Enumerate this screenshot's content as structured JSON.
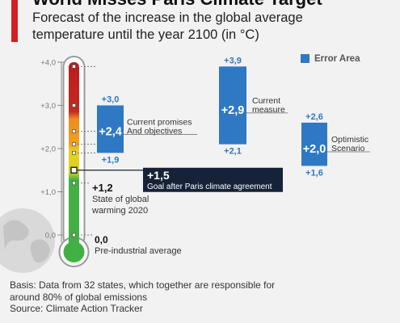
{
  "title": "World Misses Paris Climate Target",
  "subtitle_line1": "Forecast of the increase in the global average",
  "subtitle_line2": "temperature until the year 2100 (in °C)",
  "legend_label": "Error Area",
  "footer": {
    "line1": "Basis: Data from 32 states, which together are responsible for",
    "line2": "around 80% of global emissions",
    "line3": "Source: Climate Action Tracker"
  },
  "colors": {
    "accent": "#d42020",
    "bar": "#2f78c4",
    "note_box": "#152238",
    "thermo_red": "#b81d1d",
    "thermo_orange": "#f08c1e",
    "thermo_yellow": "#e8d21c",
    "thermo_green": "#43b045"
  },
  "chart_data": {
    "type": "bar",
    "ylim": [
      0,
      4
    ],
    "y_ticks": [
      "+4,0",
      "+3,0",
      "+2,0",
      "+1,0",
      "0,0"
    ],
    "series": [
      {
        "label_line1": "Current promises",
        "label_line2": "And objectives",
        "mid": 2.4,
        "low": 1.9,
        "high": 3.0,
        "mid_label": "+2,4",
        "low_label": "+1,9",
        "high_label": "+3,0"
      },
      {
        "label_line1": "Current",
        "label_line2": "measure",
        "mid": 2.9,
        "low": 2.1,
        "high": 3.9,
        "mid_label": "+2,9",
        "low_label": "+2,1",
        "high_label": "+3,9"
      },
      {
        "label_line1": "Optimistic",
        "label_line2": "Scenario",
        "mid": 2.0,
        "low": 1.6,
        "high": 2.6,
        "mid_label": "+2,0",
        "low_label": "+1,6",
        "high_label": "+2,6"
      }
    ],
    "annotations": {
      "paris_value": 1.5,
      "paris_label": "+1,5",
      "paris_text": "Goal after Paris climate agreement",
      "warming_value": 1.2,
      "warming_label": "+1,2",
      "warming_line1": "State of global",
      "warming_line2": "warming 2020",
      "base_value": 0.0,
      "base_label": "0,0",
      "base_text": "Pre-industrial average"
    }
  }
}
